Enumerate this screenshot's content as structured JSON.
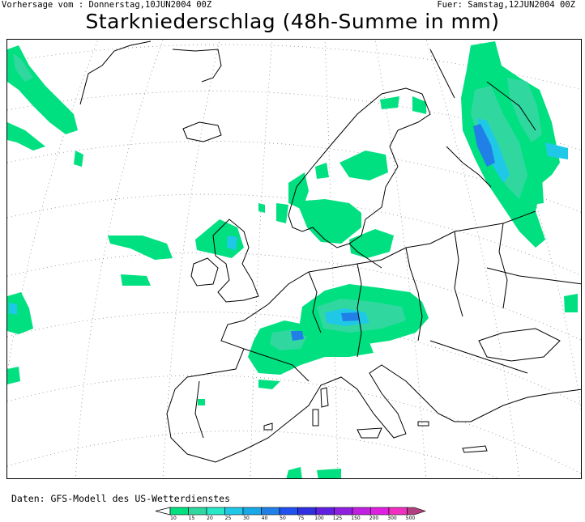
{
  "header": {
    "forecast_from": "Vorhersage vom : Donnerstag,10JUN2004 00Z",
    "valid_for": "Fuer: Samstag,12JUN2004 00Z"
  },
  "title": "Starkniederschlag (48h-Summe in mm)",
  "credit": "Daten: GFS-Modell des US-Wetterdienstes",
  "legend": {
    "levels": [
      "10",
      "15",
      "20",
      "25",
      "30",
      "40",
      "50",
      "75",
      "100",
      "125",
      "150",
      "200",
      "300",
      "500"
    ],
    "colors": [
      "#00e080",
      "#30d8a0",
      "#28e8c8",
      "#20c8e8",
      "#18a8e8",
      "#2080e8",
      "#2050f0",
      "#3030e0",
      "#6020e0",
      "#9020e0",
      "#c020e0",
      "#e020e0",
      "#f030c0",
      "#b04080"
    ]
  }
}
